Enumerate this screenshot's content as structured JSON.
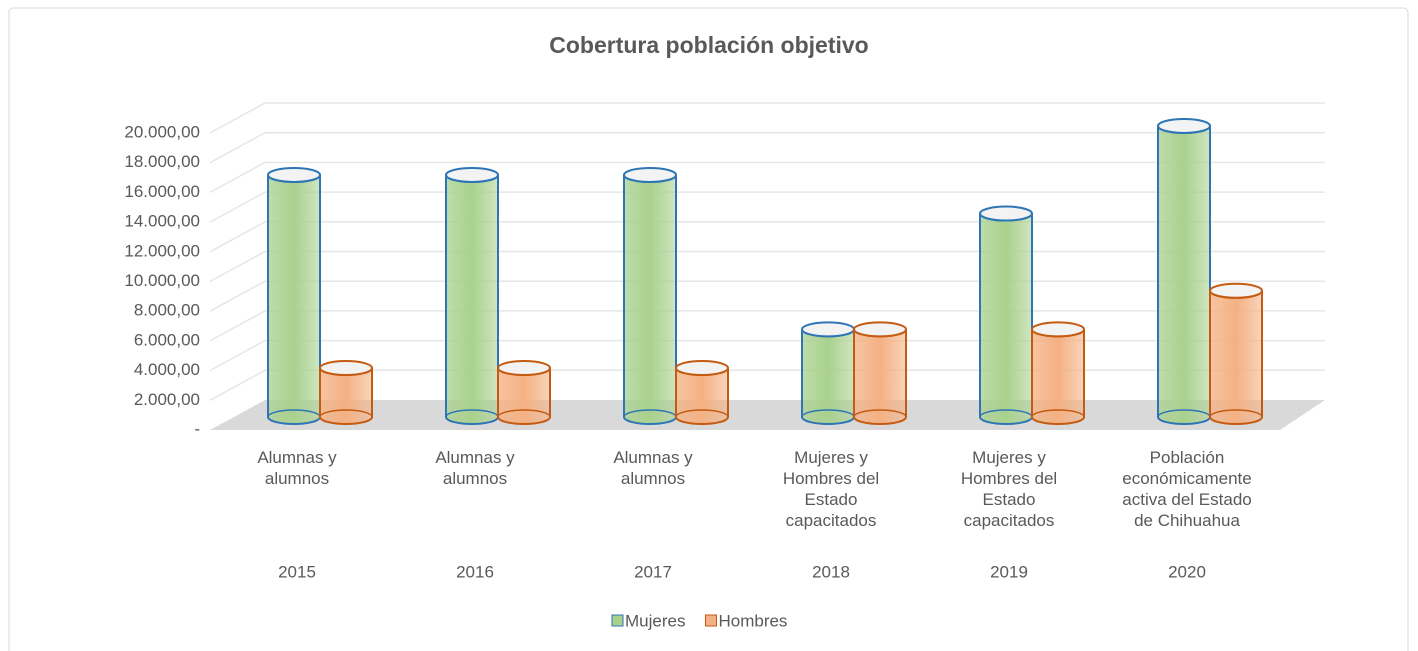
{
  "chart_data": {
    "type": "cylinder-bar",
    "title": "Cobertura población objetivo",
    "categories": [
      "Alumnas y alumnos",
      "Alumnas y alumnos",
      "Alumnas y alumnos",
      "Mujeres y Hombres del Estado capacitados",
      "Mujeres y Hombres del Estado capacitados",
      "Población económicamente activa del Estado de Chihuahua"
    ],
    "years": [
      "2015",
      "2016",
      "2017",
      "2018",
      "2019",
      "2020"
    ],
    "series": [
      {
        "name": "Mujeres",
        "color": "#a9d18e",
        "edge_color": "#2e75b6",
        "values": [
          16300,
          16300,
          16300,
          5900,
          13700,
          19600
        ]
      },
      {
        "name": "Hombres",
        "color": "#f4b183",
        "edge_color": "#c55a11",
        "values": [
          3300,
          3300,
          3300,
          5900,
          5900,
          8500
        ]
      }
    ],
    "ylim": [
      0,
      20000
    ],
    "yticks": [
      {
        "value": 0,
        "label": "-"
      },
      {
        "value": 2000,
        "label": "2.000,00"
      },
      {
        "value": 4000,
        "label": "4.000,00"
      },
      {
        "value": 6000,
        "label": "6.000,00"
      },
      {
        "value": 8000,
        "label": "8.000,00"
      },
      {
        "value": 10000,
        "label": "10.000,00"
      },
      {
        "value": 12000,
        "label": "12.000,00"
      },
      {
        "value": 14000,
        "label": "14.000,00"
      },
      {
        "value": 16000,
        "label": "16.000,00"
      },
      {
        "value": 18000,
        "label": "18.000,00"
      },
      {
        "value": 20000,
        "label": "20.000,00"
      }
    ],
    "grid": true,
    "legend": "bottom"
  }
}
